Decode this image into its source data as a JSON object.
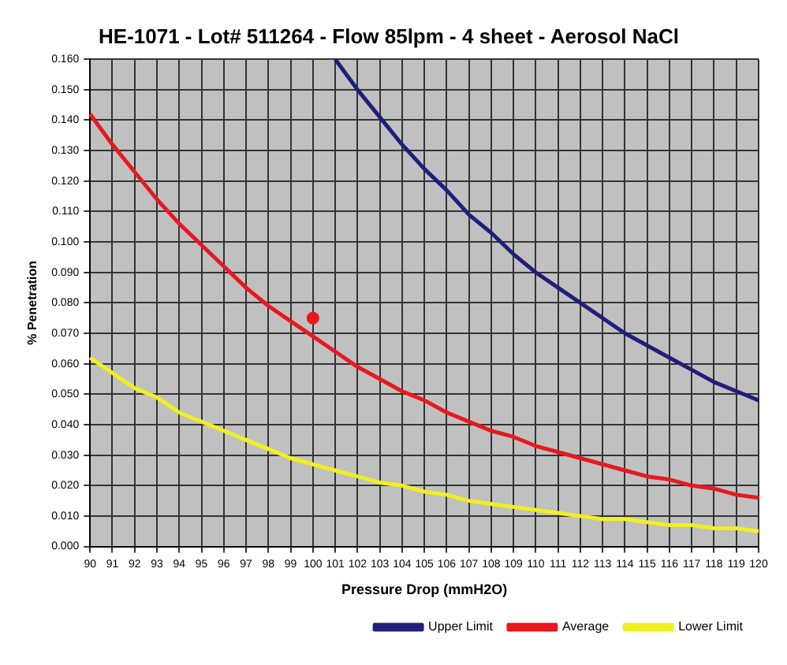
{
  "chart_data": {
    "type": "line",
    "title": "HE-1071 - Lot# 511264 - Flow 85lpm - 4 sheet - Aerosol NaCl",
    "xlabel": "Pressure Drop (mmH2O)",
    "ylabel": "% Penetration",
    "categories": [
      "90",
      "91",
      "92",
      "93",
      "94",
      "95",
      "96",
      "97",
      "98",
      "99",
      "100",
      "101",
      "102",
      "103",
      "104",
      "105",
      "106",
      "107",
      "108",
      "109",
      "110",
      "111",
      "112",
      "113",
      "114",
      "115",
      "116",
      "117",
      "118",
      "119",
      "120"
    ],
    "series": [
      {
        "name": "Upper Limit",
        "color": "#1f1f7a",
        "values": [
          null,
          null,
          null,
          null,
          null,
          null,
          null,
          null,
          null,
          null,
          null,
          0.16,
          0.15,
          0.141,
          0.132,
          0.124,
          0.117,
          0.109,
          0.103,
          0.096,
          0.09,
          0.085,
          0.08,
          0.075,
          0.07,
          0.066,
          0.062,
          0.058,
          0.054,
          0.051,
          0.048
        ]
      },
      {
        "name": "Average",
        "color": "#e8191e",
        "values": [
          0.142,
          0.132,
          0.123,
          0.114,
          0.106,
          0.099,
          0.092,
          0.085,
          0.079,
          0.074,
          0.069,
          0.064,
          0.059,
          0.055,
          0.051,
          0.048,
          0.044,
          0.041,
          0.038,
          0.036,
          0.033,
          0.031,
          0.029,
          0.027,
          0.025,
          0.023,
          0.022,
          0.02,
          0.019,
          0.017,
          0.016
        ]
      },
      {
        "name": "Lower Limit",
        "color": "#f0f020",
        "values": [
          0.062,
          0.057,
          0.052,
          0.049,
          0.044,
          0.041,
          0.038,
          0.035,
          0.032,
          0.029,
          0.027,
          0.025,
          0.023,
          0.021,
          0.02,
          0.018,
          0.017,
          0.015,
          0.014,
          0.013,
          0.012,
          0.011,
          0.01,
          0.009,
          0.009,
          0.008,
          0.007,
          0.007,
          0.006,
          0.006,
          0.005
        ]
      },
      {
        "type": "scatter",
        "marker": "circle",
        "color": "#e8191e",
        "x": [
          "100"
        ],
        "values": [
          0.075
        ]
      }
    ],
    "ylim": [
      0,
      0.16
    ],
    "yticks": [
      {
        "value": 0,
        "label": "0.000"
      },
      {
        "value": 0.01,
        "label": "0.010"
      },
      {
        "value": 0.02,
        "label": "0.020"
      },
      {
        "value": 0.03,
        "label": "0.030"
      },
      {
        "value": 0.04,
        "label": "0.040"
      },
      {
        "value": 0.05,
        "label": "0.050"
      },
      {
        "value": 0.06,
        "label": "0.060"
      },
      {
        "value": 0.07,
        "label": "0.070"
      },
      {
        "value": 0.08,
        "label": "0.080"
      },
      {
        "value": 0.09,
        "label": "0.090"
      },
      {
        "value": 0.1,
        "label": "0.100"
      },
      {
        "value": 0.11,
        "label": "0.110"
      },
      {
        "value": 0.12,
        "label": "0.120"
      },
      {
        "value": 0.13,
        "label": "0.130"
      },
      {
        "value": 0.14,
        "label": "0.140"
      },
      {
        "value": 0.15,
        "label": "0.150"
      },
      {
        "value": 0.16,
        "label": "0.160"
      }
    ],
    "grid": true,
    "legend": "bottom right",
    "marker": "none",
    "line_style": "solid"
  }
}
